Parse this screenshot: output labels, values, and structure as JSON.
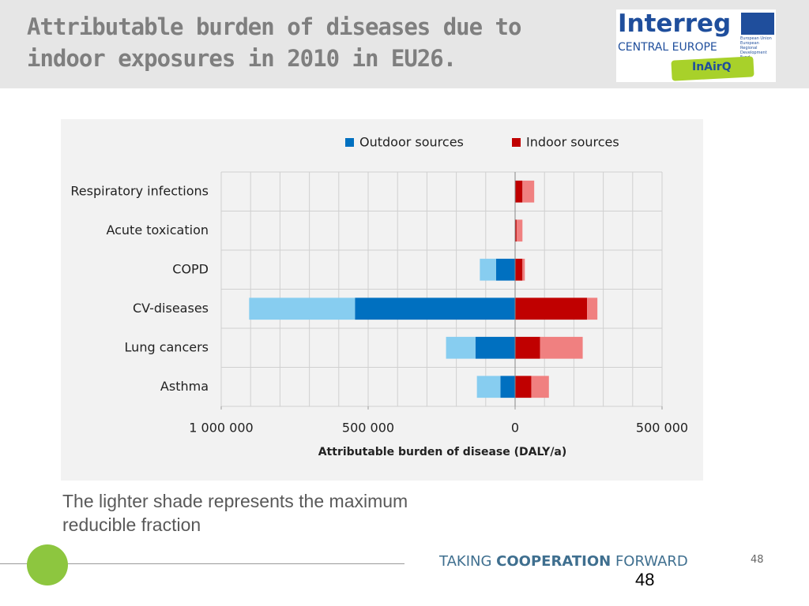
{
  "header": {
    "title_lines": [
      "Attributable burden of diseases due to",
      "indoor exposures in 2010 in EU26."
    ]
  },
  "logo": {
    "brand": "Interreg",
    "region": "CENTRAL EUROPE",
    "eu_lines": [
      "European Union",
      "European Regional",
      "Development Fund"
    ],
    "project": "InAirQ"
  },
  "chart_data": {
    "type": "diverging-stacked-bar",
    "x_label": "Attributable burden of disease (DALY/a)",
    "categories": [
      "Respiratory infections",
      "Acute toxication",
      "COPD",
      "CV-diseases",
      "Lung cancers",
      "Asthma"
    ],
    "series": [
      {
        "name": "Outdoor sources",
        "color": "#0070c0",
        "values": [
          0,
          0,
          -65000,
          -545000,
          -135000,
          -50000
        ],
        "reducible": {
          "color": "#87cdf0",
          "values": [
            0,
            0,
            -55000,
            -360000,
            -100000,
            -80000
          ]
        }
      },
      {
        "name": "Indoor sources",
        "color": "#c00000",
        "values": [
          25000,
          5000,
          25000,
          245000,
          85000,
          55000
        ],
        "reducible": {
          "color": "#f08080",
          "values": [
            40000,
            20000,
            8000,
            35000,
            145000,
            60000
          ]
        }
      }
    ],
    "xlim": [
      -1000000,
      500000
    ],
    "xticks": [
      {
        "value": -1000000,
        "label": "1 000 000"
      },
      {
        "value": -500000,
        "label": "500 000"
      },
      0,
      {
        "value": 500000,
        "label": "500 000"
      }
    ],
    "xgrid": [
      -1000000,
      -900000,
      -800000,
      -700000,
      -600000,
      -500000,
      -400000,
      -300000,
      -200000,
      -100000,
      0,
      100000,
      200000,
      300000,
      400000,
      500000
    ],
    "grid": true,
    "legend": "top"
  },
  "caption": "The lighter shade represents the maximum reducible fraction",
  "footer": {
    "taking": "TAKING",
    "cooperation": "COOPERATION",
    "forward": "FORWARD",
    "page_small": "48",
    "page": "48"
  }
}
